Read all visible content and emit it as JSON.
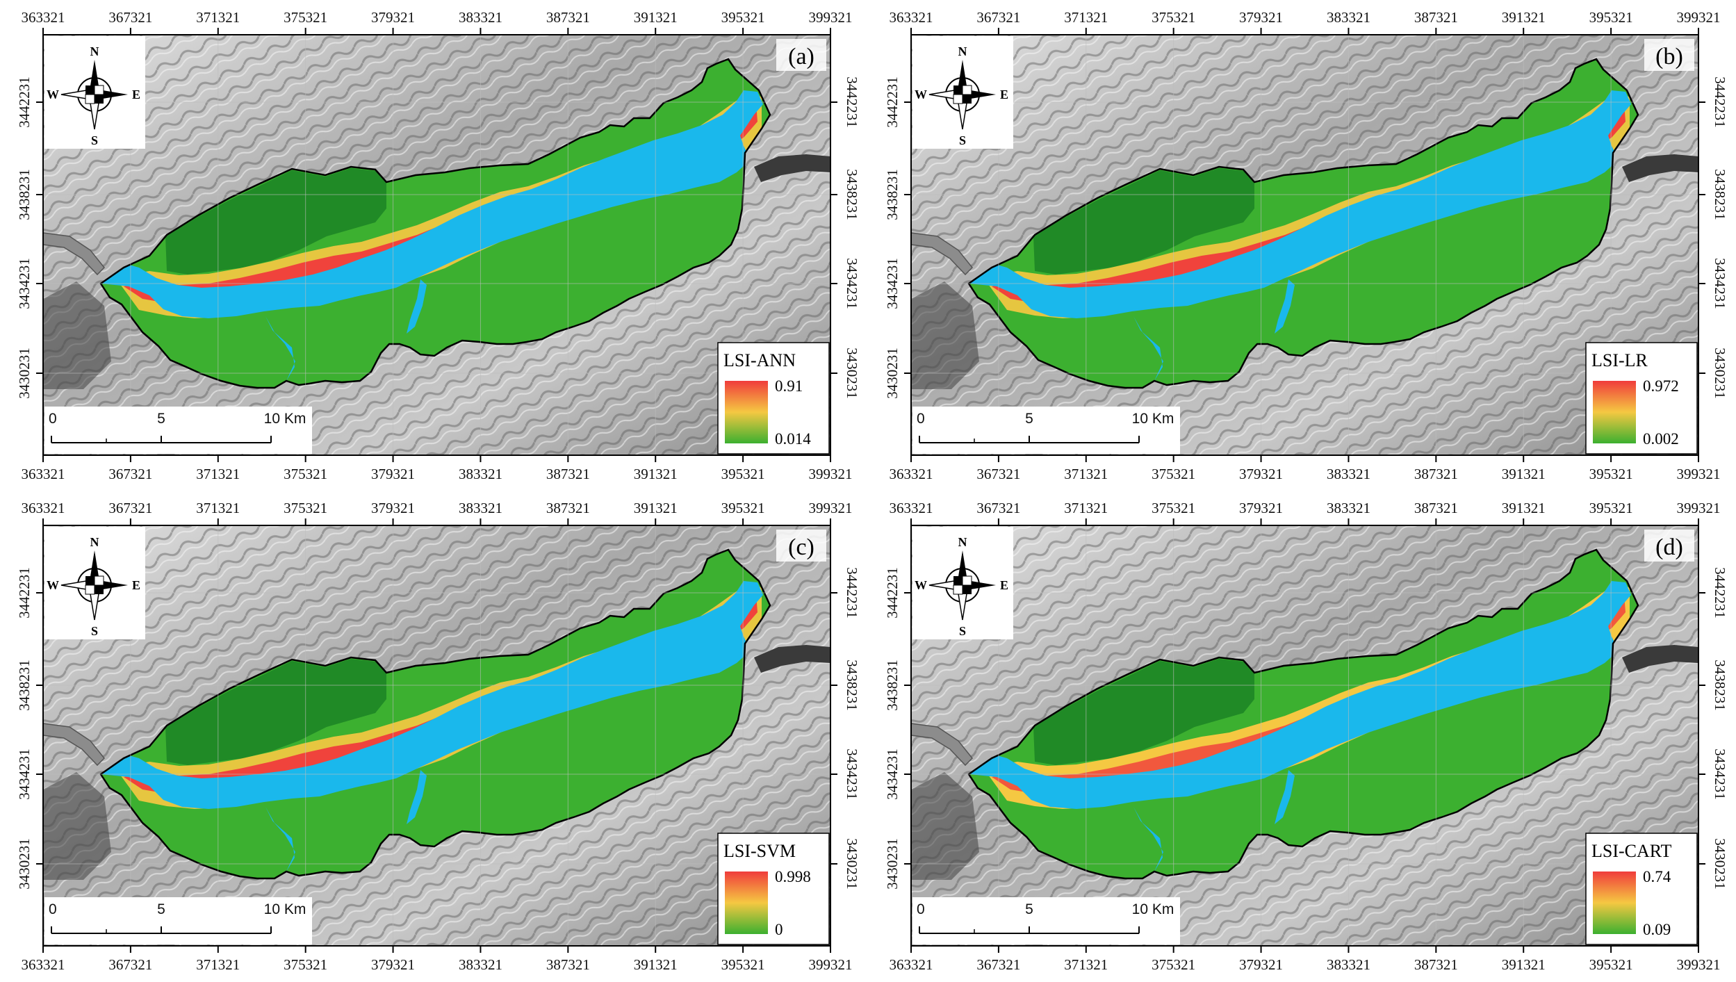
{
  "axes": {
    "x_ticks": [
      "363321",
      "367321",
      "371321",
      "375321",
      "379321",
      "383321",
      "387321",
      "391321",
      "395321",
      "399321"
    ],
    "y_ticks": [
      "3442231",
      "3438231",
      "3434231",
      "3430231"
    ]
  },
  "compass": {
    "n": "N",
    "s": "S",
    "e": "E",
    "w": "W"
  },
  "scale_bar": {
    "labels": [
      "0",
      "5",
      "10 Km"
    ]
  },
  "colors": {
    "hillshade": "#a9a9a9",
    "water": "#1ab8ec",
    "low": "#3cb030",
    "mid": "#f5c842",
    "high": "#f03c3c",
    "dark_green": "#208a26"
  },
  "panels": [
    {
      "label": "(a)",
      "legend_title": "LSI-ANN",
      "legend_max": "0.91",
      "legend_min": "0.014"
    },
    {
      "label": "(b)",
      "legend_title": "LSI-LR",
      "legend_max": "0.972",
      "legend_min": "0.002"
    },
    {
      "label": "(c)",
      "legend_title": "LSI-SVM",
      "legend_max": "0.998",
      "legend_min": "0"
    },
    {
      "label": "(d)",
      "legend_title": "LSI-CART",
      "legend_max": "0.74",
      "legend_min": "0.09"
    }
  ]
}
